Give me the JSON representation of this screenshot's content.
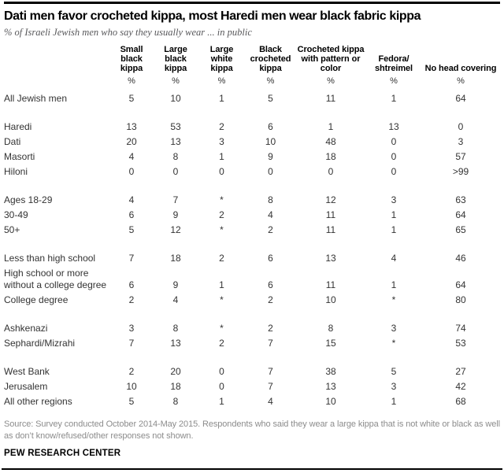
{
  "chart_data": {
    "type": "table",
    "title": "Dati men favor crocheted kippa, most Haredi men wear black fabric kippa",
    "subtitle": "% of Israeli Jewish men who say they usually wear ... in public",
    "unit": "%",
    "columns": [
      "Small\nblack\nkippa",
      "Large\nblack\nkippa",
      "Large\nwhite\nkippa",
      "Black\ncrocheted\nkippa",
      "Crocheted kippa\nwith pattern or\ncolor",
      "Fedora/\nshtreimel",
      "No head covering"
    ],
    "sections": [
      {
        "rows": [
          {
            "label": "All Jewish men",
            "values": [
              "5",
              "10",
              "1",
              "5",
              "11",
              "1",
              "64"
            ]
          }
        ]
      },
      {
        "rows": [
          {
            "label": "Haredi",
            "values": [
              "13",
              "53",
              "2",
              "6",
              "1",
              "13",
              "0"
            ]
          },
          {
            "label": "Dati",
            "values": [
              "20",
              "13",
              "3",
              "10",
              "48",
              "0",
              "3"
            ]
          },
          {
            "label": "Masorti",
            "values": [
              "4",
              "8",
              "1",
              "9",
              "18",
              "0",
              "57"
            ]
          },
          {
            "label": "Hiloni",
            "values": [
              "0",
              "0",
              "0",
              "0",
              "0",
              "0",
              ">99"
            ]
          }
        ]
      },
      {
        "rows": [
          {
            "label": "Ages 18-29",
            "values": [
              "4",
              "7",
              "*",
              "8",
              "12",
              "3",
              "63"
            ]
          },
          {
            "label": "30-49",
            "values": [
              "6",
              "9",
              "2",
              "4",
              "11",
              "1",
              "64"
            ]
          },
          {
            "label": "50+",
            "values": [
              "5",
              "12",
              "*",
              "2",
              "11",
              "1",
              "65"
            ]
          }
        ]
      },
      {
        "rows": [
          {
            "label": "Less than high school",
            "values": [
              "7",
              "18",
              "2",
              "6",
              "13",
              "4",
              "46"
            ]
          },
          {
            "label": "High school or more\nwithout a college degree",
            "values": [
              "6",
              "9",
              "1",
              "6",
              "11",
              "1",
              "64"
            ]
          },
          {
            "label": "College degree",
            "values": [
              "2",
              "4",
              "*",
              "2",
              "10",
              "*",
              "80"
            ]
          }
        ]
      },
      {
        "rows": [
          {
            "label": "Ashkenazi",
            "values": [
              "3",
              "8",
              "*",
              "2",
              "8",
              "3",
              "74"
            ]
          },
          {
            "label": "Sephardi/Mizrahi",
            "values": [
              "7",
              "13",
              "2",
              "7",
              "15",
              "*",
              "53"
            ]
          }
        ]
      },
      {
        "rows": [
          {
            "label": "West Bank",
            "values": [
              "2",
              "20",
              "0",
              "7",
              "38",
              "5",
              "27"
            ]
          },
          {
            "label": "Jerusalem",
            "values": [
              "10",
              "18",
              "0",
              "7",
              "13",
              "3",
              "42"
            ]
          },
          {
            "label": "All other regions",
            "values": [
              "5",
              "8",
              "1",
              "4",
              "10",
              "1",
              "68"
            ]
          }
        ]
      }
    ]
  },
  "footer": {
    "source": "Source: Survey conducted October 2014-May 2015. Respondents who said they wear a large kippa that is not white or black as well as don’t know/refused/other responses not shown.",
    "brand": "PEW RESEARCH CENTER"
  },
  "colors": {
    "rule": "#000000",
    "title": "#000000",
    "subtitle": "#58585b",
    "body": "#333333",
    "source": "#8c8c8c"
  }
}
